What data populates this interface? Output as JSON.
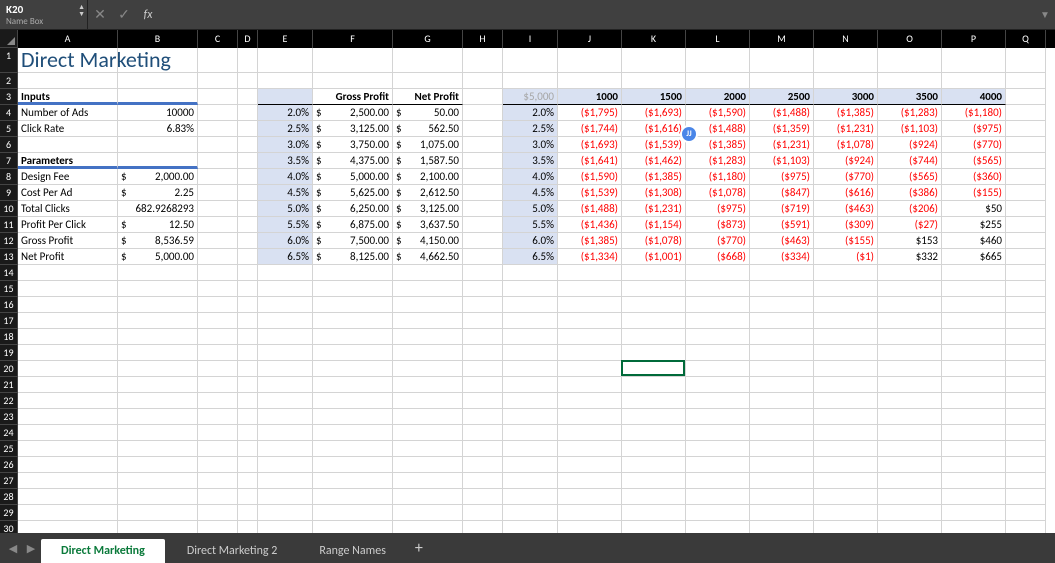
{
  "formulaBar": {
    "nameBox": "K20",
    "nameBoxLabel": "Name Box",
    "fx": "fx",
    "formula": "",
    "cancel": "✕",
    "confirm": "✓"
  },
  "grid": {
    "cols": [
      {
        "letter": "A",
        "w": 100
      },
      {
        "letter": "B",
        "w": 80
      },
      {
        "letter": "C",
        "w": 40
      },
      {
        "letter": "D",
        "w": 20
      },
      {
        "letter": "E",
        "w": 55
      },
      {
        "letter": "F",
        "w": 80
      },
      {
        "letter": "G",
        "w": 70
      },
      {
        "letter": "H",
        "w": 40
      },
      {
        "letter": "I",
        "w": 55
      },
      {
        "letter": "J",
        "w": 64
      },
      {
        "letter": "K",
        "w": 64
      },
      {
        "letter": "L",
        "w": 64
      },
      {
        "letter": "M",
        "w": 64
      },
      {
        "letter": "N",
        "w": 64
      },
      {
        "letter": "O",
        "w": 64
      },
      {
        "letter": "P",
        "w": 64
      },
      {
        "letter": "Q",
        "w": 40
      }
    ],
    "rowCount": 30,
    "activeCell": {
      "row": 20,
      "col": "K"
    }
  },
  "content": {
    "title": "Direct Marketing",
    "inputsHeader": "Inputs",
    "parametersHeader": "Parameters",
    "inputs": [
      {
        "label": "Number of Ads",
        "val": "10000",
        "cur": false
      },
      {
        "label": "Click Rate",
        "val": "6.83%",
        "cur": false
      }
    ],
    "params": [
      {
        "label": "Design Fee",
        "val": "2,000.00",
        "cur": true
      },
      {
        "label": "Cost Per Ad",
        "val": "2.25",
        "cur": true
      },
      {
        "label": "Total Clicks",
        "val": "682.9268293",
        "cur": false
      },
      {
        "label": "Profit Per Click",
        "val": "12.50",
        "cur": true
      },
      {
        "label": "Gross Profit",
        "val": "8,536.59",
        "cur": true
      },
      {
        "label": "Net Profit",
        "val": "5,000.00",
        "cur": true
      }
    ],
    "leftHeaders": {
      "gp": "Gross Profit",
      "np": "Net Profit"
    },
    "leftTable": [
      {
        "pct": "2.0%",
        "gp": "2,500.00",
        "np": "50.00"
      },
      {
        "pct": "2.5%",
        "gp": "3,125.00",
        "np": "562.50"
      },
      {
        "pct": "3.0%",
        "gp": "3,750.00",
        "np": "1,075.00"
      },
      {
        "pct": "3.5%",
        "gp": "4,375.00",
        "np": "1,587.50"
      },
      {
        "pct": "4.0%",
        "gp": "5,000.00",
        "np": "2,100.00"
      },
      {
        "pct": "4.5%",
        "gp": "5,625.00",
        "np": "2,612.50"
      },
      {
        "pct": "5.0%",
        "gp": "6,250.00",
        "np": "3,125.00"
      },
      {
        "pct": "5.5%",
        "gp": "6,875.00",
        "np": "3,637.50"
      },
      {
        "pct": "6.0%",
        "gp": "7,500.00",
        "np": "4,150.00"
      },
      {
        "pct": "6.5%",
        "gp": "8,125.00",
        "np": "4,662.50"
      }
    ],
    "rightCorner": "$5,000",
    "rightHeaders": [
      "1000",
      "1500",
      "2000",
      "2500",
      "3000",
      "3500",
      "4000"
    ],
    "rightRows": [
      {
        "pct": "2.0%",
        "v": [
          {
            "t": "($1,795)",
            "n": 1
          },
          {
            "t": "($1,693)",
            "n": 1
          },
          {
            "t": "($1,590)",
            "n": 1
          },
          {
            "t": "($1,488)",
            "n": 1
          },
          {
            "t": "($1,385)",
            "n": 1
          },
          {
            "t": "($1,283)",
            "n": 1
          },
          {
            "t": "($1,180)",
            "n": 1
          }
        ]
      },
      {
        "pct": "2.5%",
        "v": [
          {
            "t": "($1,744)",
            "n": 1
          },
          {
            "t": "($1,616)",
            "n": 1
          },
          {
            "t": "($1,488)",
            "n": 1
          },
          {
            "t": "($1,359)",
            "n": 1
          },
          {
            "t": "($1,231)",
            "n": 1
          },
          {
            "t": "($1,103)",
            "n": 1
          },
          {
            "t": "($975)",
            "n": 1
          }
        ]
      },
      {
        "pct": "3.0%",
        "v": [
          {
            "t": "($1,693)",
            "n": 1
          },
          {
            "t": "($1,539)",
            "n": 1
          },
          {
            "t": "($1,385)",
            "n": 1
          },
          {
            "t": "($1,231)",
            "n": 1
          },
          {
            "t": "($1,078)",
            "n": 1
          },
          {
            "t": "($924)",
            "n": 1
          },
          {
            "t": "($770)",
            "n": 1
          }
        ]
      },
      {
        "pct": "3.5%",
        "v": [
          {
            "t": "($1,641)",
            "n": 1
          },
          {
            "t": "($1,462)",
            "n": 1
          },
          {
            "t": "($1,283)",
            "n": 1
          },
          {
            "t": "($1,103)",
            "n": 1
          },
          {
            "t": "($924)",
            "n": 1
          },
          {
            "t": "($744)",
            "n": 1
          },
          {
            "t": "($565)",
            "n": 1
          }
        ]
      },
      {
        "pct": "4.0%",
        "v": [
          {
            "t": "($1,590)",
            "n": 1
          },
          {
            "t": "($1,385)",
            "n": 1
          },
          {
            "t": "($1,180)",
            "n": 1
          },
          {
            "t": "($975)",
            "n": 1
          },
          {
            "t": "($770)",
            "n": 1
          },
          {
            "t": "($565)",
            "n": 1
          },
          {
            "t": "($360)",
            "n": 1
          }
        ]
      },
      {
        "pct": "4.5%",
        "v": [
          {
            "t": "($1,539)",
            "n": 1
          },
          {
            "t": "($1,308)",
            "n": 1
          },
          {
            "t": "($1,078)",
            "n": 1
          },
          {
            "t": "($847)",
            "n": 1
          },
          {
            "t": "($616)",
            "n": 1
          },
          {
            "t": "($386)",
            "n": 1
          },
          {
            "t": "($155)",
            "n": 1
          }
        ]
      },
      {
        "pct": "5.0%",
        "v": [
          {
            "t": "($1,488)",
            "n": 1
          },
          {
            "t": "($1,231)",
            "n": 1
          },
          {
            "t": "($975)",
            "n": 1
          },
          {
            "t": "($719)",
            "n": 1
          },
          {
            "t": "($463)",
            "n": 1
          },
          {
            "t": "($206)",
            "n": 1
          },
          {
            "t": "$50",
            "n": 0
          }
        ]
      },
      {
        "pct": "5.5%",
        "v": [
          {
            "t": "($1,436)",
            "n": 1
          },
          {
            "t": "($1,154)",
            "n": 1
          },
          {
            "t": "($873)",
            "n": 1
          },
          {
            "t": "($591)",
            "n": 1
          },
          {
            "t": "($309)",
            "n": 1
          },
          {
            "t": "($27)",
            "n": 1
          },
          {
            "t": "$255",
            "n": 0
          }
        ]
      },
      {
        "pct": "6.0%",
        "v": [
          {
            "t": "($1,385)",
            "n": 1
          },
          {
            "t": "($1,078)",
            "n": 1
          },
          {
            "t": "($770)",
            "n": 1
          },
          {
            "t": "($463)",
            "n": 1
          },
          {
            "t": "($155)",
            "n": 1
          },
          {
            "t": "$153",
            "n": 0
          },
          {
            "t": "$460",
            "n": 0
          }
        ]
      },
      {
        "pct": "6.5%",
        "v": [
          {
            "t": "($1,334)",
            "n": 1
          },
          {
            "t": "($1,001)",
            "n": 1
          },
          {
            "t": "($668)",
            "n": 1
          },
          {
            "t": "($334)",
            "n": 1
          },
          {
            "t": "($1)",
            "n": 1
          },
          {
            "t": "$332",
            "n": 0
          },
          {
            "t": "$665",
            "n": 0
          }
        ]
      }
    ],
    "badge": "JJ"
  },
  "tabs": {
    "items": [
      "Direct Marketing",
      "Direct Marketing 2",
      "Range Names"
    ],
    "activeIndex": 0,
    "prev": "◀",
    "next": "▶",
    "add": "+"
  },
  "colors": {
    "title": "#1f4e79",
    "accent": "#4472c4",
    "shade": "#d9e1f2",
    "neg": "#ff0000",
    "gridline": "#d4d4d4",
    "activeBorder": "#006a3a",
    "tabActiveText": "#0b7a3b",
    "headerBg": "#000",
    "chromeBg": "#3a3a3a"
  }
}
